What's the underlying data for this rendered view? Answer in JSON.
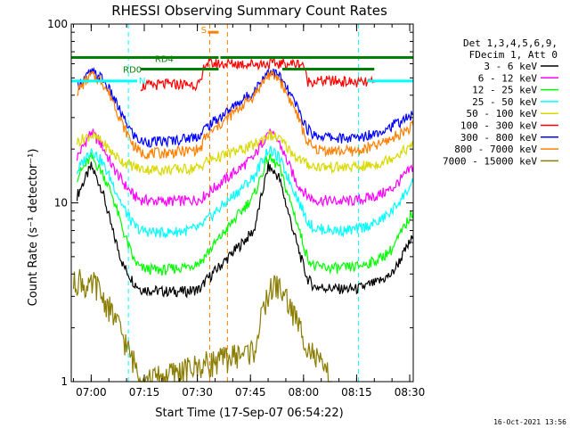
{
  "chart_data": {
    "type": "line",
    "title": "RHESSI Observing Summary Count Rates",
    "ylabel": "Count Rate (s⁻¹ detector⁻¹)",
    "xlabel": "Start Time (17-Sep-07 06:54:22)",
    "y_scale": "log",
    "ylim": [
      1,
      100
    ],
    "xlim": [
      "06:54:22",
      "08:31:00"
    ],
    "x_ticks": [
      "07:00",
      "07:15",
      "07:30",
      "07:45",
      "08:00",
      "08:15",
      "08:30"
    ],
    "y_ticks": [
      "1",
      "10",
      "100"
    ],
    "legend": {
      "placement": "right",
      "header": [
        "Det 1,3,4,5,6,9,",
        "FDecim 1, Att 0"
      ],
      "entries": [
        {
          "label": "3 - 6 keV",
          "color": "#000000"
        },
        {
          "label": "6 - 12 keV",
          "color": "#ff00ff"
        },
        {
          "label": "12 - 25 keV",
          "color": "#00ff00"
        },
        {
          "label": "25 - 50 keV",
          "color": "#00ffff"
        },
        {
          "label": "50 - 100 keV",
          "color": "#d9d900"
        },
        {
          "label": "100 - 300 keV",
          "color": "#ff0000"
        },
        {
          "label": "300 - 800 keV",
          "color": "#0000ff"
        },
        {
          "label": "800 - 7000 keV",
          "color": "#ff8000"
        },
        {
          "label": "7000 - 15000 keV",
          "color": "#8b7d00"
        }
      ]
    },
    "flag_bars": [
      {
        "label": "N",
        "color": "#00ffff",
        "segments": [
          [
            "06:54:22",
            "07:13:00"
          ],
          [
            "08:18:00",
            "08:31:00"
          ]
        ],
        "level": 48
      },
      {
        "label": "RD0",
        "color": "#008000",
        "segments": [
          [
            "07:14:00",
            "07:36:00"
          ],
          [
            "07:54:00",
            "08:20:00"
          ]
        ],
        "level": 56
      },
      {
        "label": "RD4",
        "color": "#008000",
        "segments": [
          [
            "06:54:22",
            "07:36:00"
          ],
          [
            "07:36:30",
            "08:31:00"
          ]
        ],
        "level": 65
      },
      {
        "label": "S",
        "color": "#ff8000",
        "segments": [
          [
            "07:33:00",
            "07:36:00"
          ]
        ],
        "level": 90
      }
    ],
    "night_boundaries": [
      "07:10:30",
      "07:33:30",
      "07:38:30",
      "08:15:30",
      "08:31:00"
    ],
    "series": [
      {
        "name": "3 - 6 keV",
        "color": "#000000",
        "points": [
          [
            "06:56",
            11
          ],
          [
            "07:00",
            16
          ],
          [
            "07:03",
            12
          ],
          [
            "07:06",
            7
          ],
          [
            "07:09",
            4.5
          ],
          [
            "07:12",
            3.6
          ],
          [
            "07:14",
            3.3
          ],
          [
            "07:20",
            3.2
          ],
          [
            "07:27",
            3.2
          ],
          [
            "07:31",
            3.3
          ],
          [
            "07:32",
            3.6
          ],
          [
            "07:46",
            7
          ],
          [
            "07:50",
            16
          ],
          [
            "07:53",
            14
          ],
          [
            "07:58",
            6
          ],
          [
            "08:01",
            3.8
          ],
          [
            "08:03",
            3.4
          ],
          [
            "08:10",
            3.3
          ],
          [
            "08:15",
            3.3
          ],
          [
            "08:21",
            3.6
          ],
          [
            "08:25",
            4
          ],
          [
            "08:31",
            6.5
          ]
        ]
      },
      {
        "name": "6 - 12 keV",
        "color": "#ff00ff",
        "points": [
          [
            "06:56",
            18
          ],
          [
            "07:00",
            25
          ],
          [
            "07:03",
            21
          ],
          [
            "07:06",
            16
          ],
          [
            "07:09",
            13
          ],
          [
            "07:12",
            11
          ],
          [
            "07:14",
            10.4
          ],
          [
            "07:20",
            10.2
          ],
          [
            "07:27",
            10.3
          ],
          [
            "07:31",
            10.5
          ],
          [
            "07:32",
            11
          ],
          [
            "07:46",
            18
          ],
          [
            "07:50",
            25
          ],
          [
            "07:53",
            22
          ],
          [
            "07:58",
            13
          ],
          [
            "08:01",
            11
          ],
          [
            "08:03",
            10.4
          ],
          [
            "08:10",
            10.2
          ],
          [
            "08:15",
            10.3
          ],
          [
            "08:21",
            11
          ],
          [
            "08:25",
            12
          ],
          [
            "08:31",
            16
          ]
        ]
      },
      {
        "name": "12 - 25 keV",
        "color": "#00ff00",
        "points": [
          [
            "06:56",
            14
          ],
          [
            "07:00",
            18
          ],
          [
            "07:03",
            15
          ],
          [
            "07:06",
            11
          ],
          [
            "07:09",
            7
          ],
          [
            "07:12",
            4.8
          ],
          [
            "07:14",
            4.3
          ],
          [
            "07:20",
            4.2
          ],
          [
            "07:27",
            4.4
          ],
          [
            "07:31",
            4.7
          ],
          [
            "07:32",
            5
          ],
          [
            "07:46",
            11
          ],
          [
            "07:50",
            18
          ],
          [
            "07:53",
            16
          ],
          [
            "07:58",
            8
          ],
          [
            "08:01",
            5
          ],
          [
            "08:03",
            4.4
          ],
          [
            "08:10",
            4.3
          ],
          [
            "08:15",
            4.4
          ],
          [
            "08:21",
            4.8
          ],
          [
            "08:25",
            5.5
          ],
          [
            "08:31",
            9
          ]
        ]
      },
      {
        "name": "25 - 50 keV",
        "color": "#00ffff",
        "points": [
          [
            "06:56",
            15
          ],
          [
            "07:00",
            20
          ],
          [
            "07:03",
            17
          ],
          [
            "07:06",
            13
          ],
          [
            "07:09",
            9.5
          ],
          [
            "07:12",
            7.5
          ],
          [
            "07:14",
            7
          ],
          [
            "07:20",
            6.8
          ],
          [
            "07:27",
            7
          ],
          [
            "07:31",
            7.3
          ],
          [
            "07:32",
            7.8
          ],
          [
            "07:46",
            14
          ],
          [
            "07:50",
            20
          ],
          [
            "07:53",
            18
          ],
          [
            "07:58",
            11
          ],
          [
            "08:01",
            8
          ],
          [
            "08:03",
            7.2
          ],
          [
            "08:10",
            7
          ],
          [
            "08:15",
            7.1
          ],
          [
            "08:21",
            7.8
          ],
          [
            "08:25",
            9
          ],
          [
            "08:31",
            13
          ]
        ]
      },
      {
        "name": "50 - 100 keV",
        "color": "#d9d900",
        "points": [
          [
            "06:56",
            22
          ],
          [
            "07:00",
            24
          ],
          [
            "07:03",
            22
          ],
          [
            "07:06",
            19
          ],
          [
            "07:09",
            17
          ],
          [
            "07:12",
            16
          ],
          [
            "07:14",
            15.5
          ],
          [
            "07:20",
            15.3
          ],
          [
            "07:27",
            15.5
          ],
          [
            "07:31",
            15.8
          ],
          [
            "07:32",
            17
          ],
          [
            "07:46",
            21
          ],
          [
            "07:50",
            24
          ],
          [
            "07:53",
            23
          ],
          [
            "07:58",
            18
          ],
          [
            "08:01",
            16.5
          ],
          [
            "08:03",
            16
          ],
          [
            "08:10",
            15.8
          ],
          [
            "08:15",
            15.8
          ],
          [
            "08:21",
            16.5
          ],
          [
            "08:25",
            18
          ],
          [
            "08:31",
            21
          ]
        ]
      },
      {
        "name": "100 - 300 keV",
        "color": "#ff0000",
        "points": [
          [
            "07:14",
            45
          ],
          [
            "07:20",
            46
          ],
          [
            "07:27",
            46
          ],
          [
            "07:31",
            46
          ],
          [
            "07:32",
            60
          ],
          [
            "08:00",
            60
          ],
          [
            "08:01",
            48
          ],
          [
            "08:10",
            48
          ],
          [
            "08:15",
            47
          ],
          [
            "08:20",
            47
          ]
        ]
      },
      {
        "name": "300 - 800 keV",
        "color": "#0000ff",
        "points": [
          [
            "06:56",
            45
          ],
          [
            "07:00",
            54
          ],
          [
            "07:03",
            50
          ],
          [
            "07:06",
            40
          ],
          [
            "07:09",
            30
          ],
          [
            "07:12",
            24
          ],
          [
            "07:14",
            22
          ],
          [
            "07:20",
            22
          ],
          [
            "07:27",
            23
          ],
          [
            "07:31",
            24
          ],
          [
            "07:32",
            26
          ],
          [
            "07:46",
            42
          ],
          [
            "07:50",
            55
          ],
          [
            "07:53",
            52
          ],
          [
            "07:58",
            35
          ],
          [
            "08:01",
            26
          ],
          [
            "08:03",
            24
          ],
          [
            "08:10",
            23
          ],
          [
            "08:15",
            23
          ],
          [
            "08:21",
            25
          ],
          [
            "08:25",
            27
          ],
          [
            "08:31",
            31
          ]
        ]
      },
      {
        "name": "800 - 7000 keV",
        "color": "#ff8000",
        "points": [
          [
            "06:56",
            42
          ],
          [
            "07:00",
            52
          ],
          [
            "07:03",
            48
          ],
          [
            "07:06",
            38
          ],
          [
            "07:09",
            27
          ],
          [
            "07:12",
            21
          ],
          [
            "07:14",
            19
          ],
          [
            "07:20",
            19
          ],
          [
            "07:27",
            19.5
          ],
          [
            "07:31",
            20
          ],
          [
            "07:32",
            23
          ],
          [
            "07:46",
            40
          ],
          [
            "07:50",
            52
          ],
          [
            "07:53",
            50
          ],
          [
            "07:58",
            32
          ],
          [
            "08:01",
            22
          ],
          [
            "08:03",
            20
          ],
          [
            "08:10",
            19.5
          ],
          [
            "08:15",
            19.5
          ],
          [
            "08:21",
            21
          ],
          [
            "08:25",
            23
          ],
          [
            "08:31",
            27
          ]
        ]
      },
      {
        "name": "7000 - 15000 keV",
        "color": "#8b7d00",
        "points": [
          [
            "06:55",
            3.5
          ],
          [
            "06:57",
            3.8
          ],
          [
            "06:59",
            3.2
          ],
          [
            "07:01",
            3.6
          ],
          [
            "07:03",
            3
          ],
          [
            "07:05",
            2.6
          ],
          [
            "07:07",
            2.2
          ],
          [
            "07:09",
            1.8
          ],
          [
            "07:11",
            1.4
          ],
          [
            "07:13",
            1.2
          ],
          [
            "07:15",
            1
          ],
          [
            "07:46",
            1.5
          ],
          [
            "07:48",
            2.2
          ],
          [
            "07:50",
            3.1
          ],
          [
            "07:52",
            3.5
          ],
          [
            "07:54",
            3.2
          ],
          [
            "07:56",
            2.7
          ],
          [
            "07:58",
            2.2
          ],
          [
            "08:00",
            1.8
          ],
          [
            "08:02",
            1.5
          ],
          [
            "08:04",
            1.3
          ],
          [
            "08:06",
            1.15
          ],
          [
            "08:08",
            1
          ]
        ]
      }
    ]
  },
  "footer": {
    "date_stamp": "16-Oct-2021 13:56"
  }
}
